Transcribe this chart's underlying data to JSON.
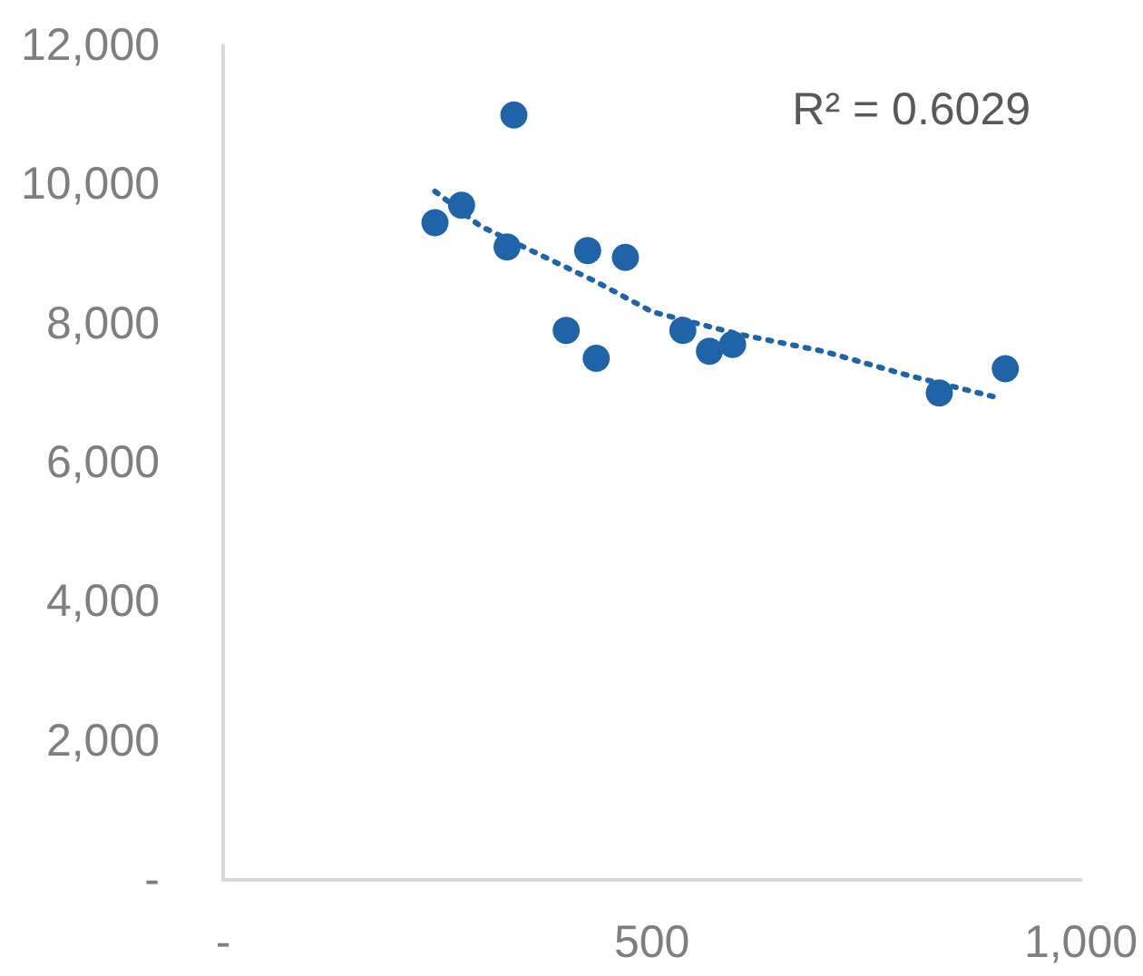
{
  "chart_data": {
    "type": "scatter",
    "xlim": [
      0,
      1000
    ],
    "xticks": [
      {
        "value": 0,
        "label": "-"
      },
      500,
      {
        "value": 1000,
        "label": "1,000"
      }
    ],
    "ylim": [
      0,
      12000
    ],
    "yticks": [
      {
        "value": 0,
        "label": "-"
      },
      {
        "value": 2000,
        "label": "2,000"
      },
      {
        "value": 4000,
        "label": "4,000"
      },
      {
        "value": 6000,
        "label": "6,000"
      },
      {
        "value": 8000,
        "label": "8,000"
      },
      {
        "value": 10000,
        "label": "10,000"
      },
      {
        "value": 12000,
        "label": "12,000"
      }
    ],
    "grid": false,
    "marker": "circle",
    "annotations": [
      "R² = 0.6029"
    ],
    "series": [
      {
        "color": "#1f64a8",
        "x": [
          247,
          278,
          339,
          331,
          425,
          469,
          400,
          435,
          536,
          567,
          594,
          835,
          912
        ],
        "values": [
          9450,
          9700,
          11000,
          9100,
          9050,
          8950,
          7900,
          7500,
          7900,
          7600,
          7700,
          7000,
          7350
        ]
      },
      {
        "type": "line",
        "color": "#1f64a8",
        "line_style": "dotted",
        "marker": "none",
        "x": [
          247,
          300,
          435,
          500,
          600,
          700,
          800,
          901
        ],
        "values": [
          9900,
          9400,
          8600,
          8170,
          7850,
          7600,
          7250,
          6940
        ]
      }
    ]
  }
}
